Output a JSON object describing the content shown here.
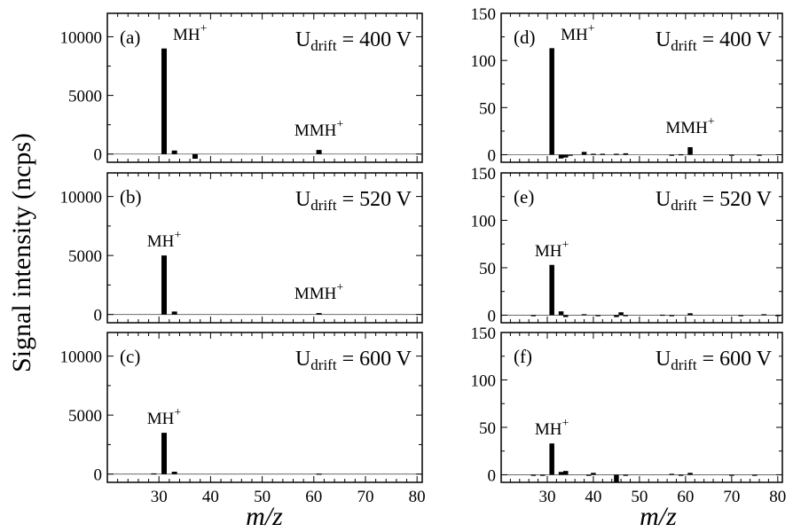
{
  "figure": {
    "ylabel": "Signal intensity (ncps)",
    "xlabel": "m/z"
  },
  "colors": {
    "bar": "#000000",
    "axis": "#000000",
    "background": "#ffffff"
  },
  "chart_data": [
    {
      "type": "bar",
      "panel": "a",
      "panel_label": "(a)",
      "drift_label": "U",
      "drift_sub": "drift",
      "drift_value": "= 400 V",
      "xlim": [
        20,
        81
      ],
      "ylim": [
        -700,
        12000
      ],
      "xticks": [
        30,
        40,
        50,
        60,
        70,
        80
      ],
      "yticks": [
        0,
        5000,
        10000
      ],
      "show_xticklabels": false,
      "x": [
        31,
        33,
        37,
        61
      ],
      "values": [
        9000,
        300,
        -400,
        350
      ],
      "annotations": [
        {
          "text": "MH",
          "sup": "+",
          "x": 31,
          "y": 9000
        },
        {
          "text": "MMH",
          "sup": "+",
          "x": 61,
          "y": 350
        }
      ]
    },
    {
      "type": "bar",
      "panel": "b",
      "panel_label": "(b)",
      "drift_label": "U",
      "drift_sub": "drift",
      "drift_value": "= 520 V",
      "xlim": [
        20,
        81
      ],
      "ylim": [
        -700,
        12000
      ],
      "xticks": [
        30,
        40,
        50,
        60,
        70,
        80
      ],
      "yticks": [
        0,
        5000,
        10000
      ],
      "show_xticklabels": false,
      "x": [
        31,
        33,
        61
      ],
      "values": [
        5000,
        250,
        120
      ],
      "annotations": [
        {
          "text": "MH",
          "sup": "+",
          "x": 31,
          "y": 5000
        },
        {
          "text": "MMH",
          "sup": "+",
          "x": 61,
          "y": 120
        }
      ]
    },
    {
      "type": "bar",
      "panel": "c",
      "panel_label": "(c)",
      "drift_label": "U",
      "drift_sub": "drift",
      "drift_value": "= 600 V",
      "xlim": [
        20,
        81
      ],
      "ylim": [
        -700,
        12000
      ],
      "xticks": [
        30,
        40,
        50,
        60,
        70,
        80
      ],
      "yticks": [
        0,
        5000,
        10000
      ],
      "show_xticklabels": true,
      "x": [
        29,
        31,
        33,
        61
      ],
      "values": [
        60,
        3500,
        200,
        40
      ],
      "annotations": [
        {
          "text": "MH",
          "sup": "+",
          "x": 31,
          "y": 3500
        }
      ]
    },
    {
      "type": "bar",
      "panel": "d",
      "panel_label": "(d)",
      "drift_label": "U",
      "drift_sub": "drift",
      "drift_value": "= 400 V",
      "xlim": [
        20,
        81
      ],
      "ylim": [
        -8,
        150
      ],
      "xticks": [
        30,
        40,
        50,
        60,
        70,
        80
      ],
      "yticks": [
        0,
        50,
        100,
        150
      ],
      "show_xticklabels": false,
      "x": [
        31,
        33,
        34,
        35,
        38,
        40,
        42,
        45,
        47,
        57,
        59,
        61,
        70,
        76
      ],
      "values": [
        113,
        -4,
        -3,
        -1,
        3,
        1,
        1,
        1,
        1.5,
        -1,
        0.5,
        8,
        -0.5,
        -0.5
      ],
      "annotations": [
        {
          "text": "MH",
          "sup": "+",
          "x": 31,
          "y": 113
        },
        {
          "text": "MMH",
          "sup": "+",
          "x": 61,
          "y": 8
        }
      ]
    },
    {
      "type": "bar",
      "panel": "e",
      "panel_label": "(e)",
      "drift_label": "U",
      "drift_sub": "drift",
      "drift_value": "= 520 V",
      "xlim": [
        20,
        81
      ],
      "ylim": [
        -8,
        150
      ],
      "xticks": [
        30,
        40,
        50,
        60,
        70,
        80
      ],
      "yticks": [
        0,
        50,
        100,
        150
      ],
      "show_xticklabels": false,
      "x": [
        27,
        31,
        33,
        34,
        38,
        41,
        45,
        46,
        47,
        55,
        57,
        61,
        72,
        77,
        80
      ],
      "values": [
        -1,
        53,
        4,
        -2,
        1,
        -1,
        -2,
        3,
        -1,
        0.5,
        -1,
        2,
        -0.5,
        1,
        -1
      ],
      "annotations": [
        {
          "text": "MH",
          "sup": "+",
          "x": 31,
          "y": 53
        }
      ]
    },
    {
      "type": "bar",
      "panel": "f",
      "panel_label": "(f)",
      "drift_label": "U",
      "drift_sub": "drift",
      "drift_value": "= 600 V",
      "xlim": [
        20,
        81
      ],
      "ylim": [
        -8,
        150
      ],
      "xticks": [
        30,
        40,
        50,
        60,
        70,
        80
      ],
      "yticks": [
        0,
        50,
        100,
        150
      ],
      "show_xticklabels": true,
      "x": [
        27,
        29,
        31,
        33,
        34,
        39,
        40,
        45,
        47,
        57,
        59,
        61,
        70,
        75
      ],
      "values": [
        -1,
        -1,
        33,
        3,
        4,
        -1,
        2,
        -8,
        -1,
        1,
        -1,
        2,
        -0.5,
        -0.5
      ],
      "annotations": [
        {
          "text": "MH",
          "sup": "+",
          "x": 31,
          "y": 33
        }
      ]
    }
  ]
}
